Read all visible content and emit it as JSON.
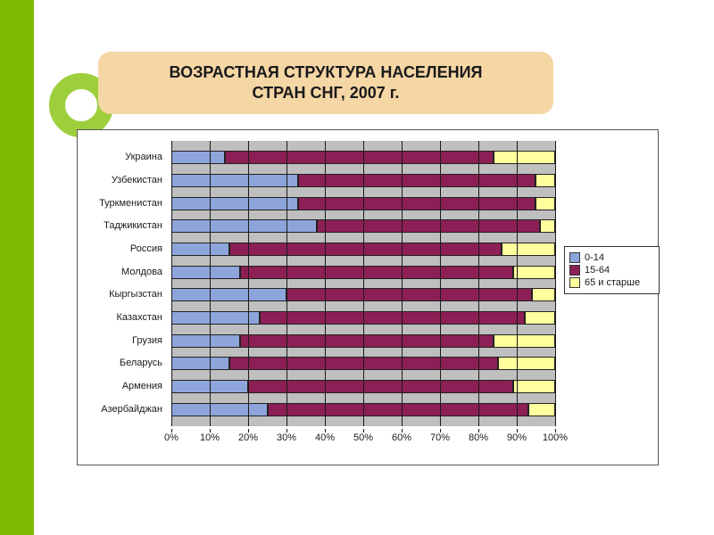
{
  "title": "ВОЗРАСТНАЯ СТРУКТУРА НАСЕЛЕНИЯ\nСТРАН СНГ, 2007 г.",
  "accent_sidebar_color": "#7fba00",
  "accent_ring_color": "#9dcf3c",
  "title_bg_color": "#f5d6a5",
  "chart": {
    "type": "stacked_bar_horizontal_100pct",
    "plot_bg": "#bfbfbf",
    "grid_color": "#1a1a1a",
    "series": [
      {
        "name": "0-14",
        "color": "#8ea5db"
      },
      {
        "name": "15-64",
        "color": "#8c1f55"
      },
      {
        "name": "65 и старше",
        "color": "#ffff9e"
      }
    ],
    "categories": [
      {
        "label": "Украина",
        "values": [
          14,
          70,
          16
        ]
      },
      {
        "label": "Узбекистан",
        "values": [
          33,
          62,
          5
        ]
      },
      {
        "label": "Туркменистан",
        "values": [
          33,
          62,
          5
        ]
      },
      {
        "label": "Таджикистан",
        "values": [
          38,
          58,
          4
        ]
      },
      {
        "label": "Россия",
        "values": [
          15,
          71,
          14
        ]
      },
      {
        "label": "Молдова",
        "values": [
          18,
          71,
          11
        ]
      },
      {
        "label": "Кыргызстан",
        "values": [
          30,
          64,
          6
        ]
      },
      {
        "label": "Казахстан",
        "values": [
          23,
          69,
          8
        ]
      },
      {
        "label": "Грузия",
        "values": [
          18,
          66,
          16
        ]
      },
      {
        "label": "Беларусь",
        "values": [
          15,
          70,
          15
        ]
      },
      {
        "label": "Армения",
        "values": [
          20,
          69,
          11
        ]
      },
      {
        "label": "Азербайджан",
        "values": [
          25,
          68,
          7
        ]
      }
    ],
    "x_ticks": [
      0,
      10,
      20,
      30,
      40,
      50,
      60,
      70,
      80,
      90,
      100
    ],
    "x_tick_labels": [
      "0%",
      "10%",
      "20%",
      "30%",
      "40%",
      "50%",
      "60%",
      "70%",
      "80%",
      "90%",
      "100%"
    ],
    "xlim": [
      0,
      100
    ],
    "label_fontsize": 11,
    "title_fontsize": 18
  }
}
